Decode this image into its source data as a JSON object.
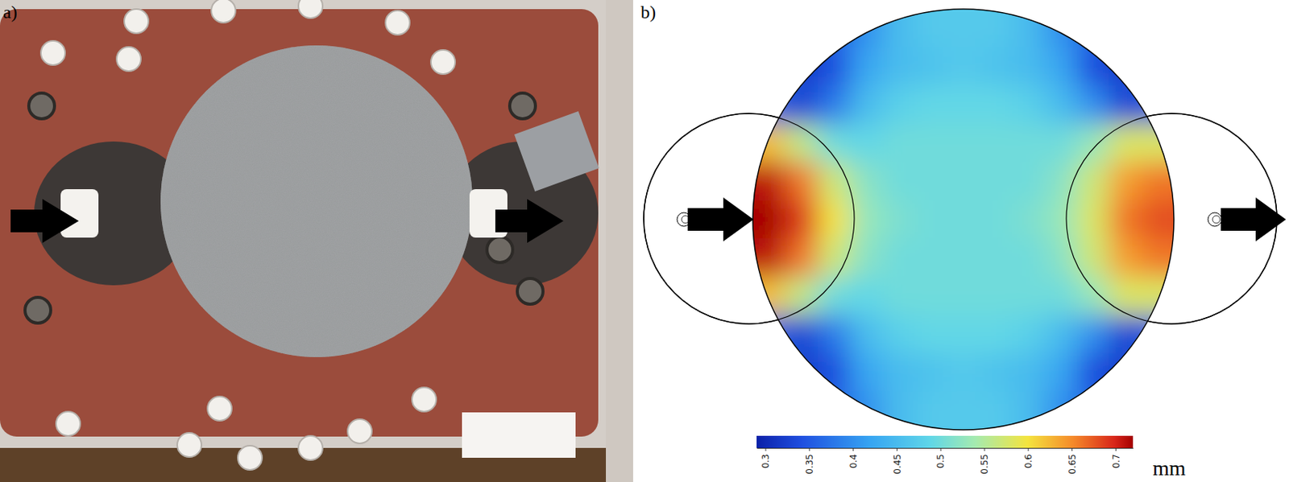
{
  "chart_data": [
    {
      "type": "image",
      "label": "a)"
    },
    {
      "type": "heatmap",
      "label": "b)",
      "cells": [
        [
          0.4,
          0.38,
          0.36,
          0.4,
          0.45,
          0.47,
          0.47,
          0.47,
          0.45,
          0.4,
          0.36,
          0.38,
          0.4
        ],
        [
          0.4,
          0.32,
          0.34,
          0.42,
          0.45,
          0.46,
          0.47,
          0.46,
          0.45,
          0.42,
          0.34,
          0.32,
          0.4
        ],
        [
          0.36,
          0.33,
          0.38,
          0.45,
          0.48,
          0.49,
          0.49,
          0.49,
          0.48,
          0.45,
          0.4,
          0.33,
          0.35
        ],
        [
          0.62,
          0.56,
          0.5,
          0.49,
          0.5,
          0.5,
          0.5,
          0.5,
          0.5,
          0.5,
          0.53,
          0.58,
          0.58
        ],
        [
          0.71,
          0.66,
          0.57,
          0.52,
          0.5,
          0.5,
          0.5,
          0.5,
          0.5,
          0.52,
          0.57,
          0.64,
          0.66
        ],
        [
          0.73,
          0.69,
          0.6,
          0.53,
          0.51,
          0.5,
          0.5,
          0.5,
          0.51,
          0.53,
          0.58,
          0.66,
          0.68
        ],
        [
          0.71,
          0.66,
          0.57,
          0.52,
          0.5,
          0.5,
          0.5,
          0.5,
          0.5,
          0.52,
          0.57,
          0.64,
          0.66
        ],
        [
          0.62,
          0.56,
          0.5,
          0.49,
          0.5,
          0.5,
          0.5,
          0.5,
          0.5,
          0.5,
          0.53,
          0.58,
          0.58
        ],
        [
          0.36,
          0.33,
          0.38,
          0.45,
          0.48,
          0.49,
          0.49,
          0.49,
          0.48,
          0.45,
          0.4,
          0.33,
          0.35
        ],
        [
          0.4,
          0.32,
          0.34,
          0.42,
          0.45,
          0.46,
          0.47,
          0.46,
          0.45,
          0.42,
          0.34,
          0.32,
          0.4
        ],
        [
          0.4,
          0.38,
          0.36,
          0.4,
          0.45,
          0.47,
          0.47,
          0.47,
          0.45,
          0.4,
          0.36,
          0.38,
          0.4
        ]
      ],
      "colorbar": {
        "range": [
          0.29,
          0.72
        ],
        "ticks": [
          0.3,
          0.35,
          0.4,
          0.45,
          0.5,
          0.55,
          0.6,
          0.65,
          0.7
        ],
        "label": "mm"
      }
    }
  ]
}
